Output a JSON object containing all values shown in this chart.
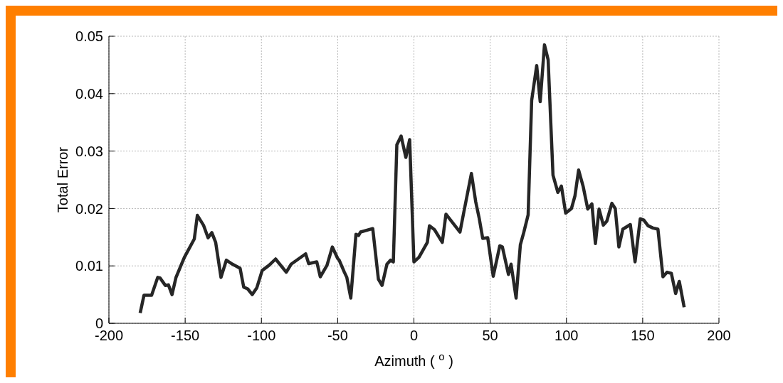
{
  "chart_data": {
    "type": "line",
    "xlabel": "Azimuth ( $^{o}$ )",
    "ylabel": "Total Error",
    "xlim": [
      -200,
      200
    ],
    "xticks": [
      -200,
      -150,
      -100,
      -50,
      0,
      50,
      100,
      150,
      200
    ],
    "ylim": [
      0,
      0.05
    ],
    "yticks": [
      0,
      0.01,
      0.02,
      0.03,
      0.04,
      0.05
    ],
    "grid": true,
    "series": [
      {
        "color": "#262626",
        "x": [
          -179.5,
          -177,
          -172,
          -168,
          -166.5,
          -163,
          -161,
          -158.6,
          -156,
          -150.5,
          -144,
          -142,
          -138,
          -135,
          -132.5,
          -130,
          -126.5,
          -123,
          -119,
          -114,
          -111.6,
          -109,
          -106,
          -103,
          -99.5,
          -95,
          -90.7,
          -83.7,
          -80.5,
          -71,
          -69,
          -63.7,
          -61.4,
          -57,
          -53.5,
          -50,
          -49,
          -45.6,
          -44,
          -41.4,
          -38,
          -36.3,
          -35,
          -27,
          -23.3,
          -20.9,
          -17.7,
          -15.3,
          -13.5,
          -11.2,
          -8.4,
          -5.3,
          -2.8,
          0,
          3.3,
          8.8,
          10.2,
          13.5,
          18.6,
          21,
          30.2,
          32.6,
          37.7,
          40.5,
          42.8,
          45.1,
          48.4,
          52,
          56.3,
          58,
          62,
          63.7,
          67,
          69.8,
          72,
          74.9,
          77.2,
          80.5,
          82.8,
          85.6,
          88,
          91.2,
          94.4,
          96.7,
          99.5,
          103.3,
          105.6,
          108,
          111,
          114,
          116.7,
          119,
          121.4,
          124.2,
          126.5,
          129.8,
          132,
          134.4,
          137,
          141.9,
          145,
          148.4,
          150.7,
          153.5,
          156.7,
          160,
          163.3,
          166,
          168.8,
          171.6,
          174,
          177.2
        ],
        "values": [
          0.0018,
          0.0049,
          0.0049,
          0.008,
          0.0079,
          0.0066,
          0.0067,
          0.005,
          0.008,
          0.0115,
          0.0147,
          0.0188,
          0.0171,
          0.0149,
          0.0158,
          0.0141,
          0.008,
          0.011,
          0.0103,
          0.0096,
          0.0063,
          0.006,
          0.005,
          0.0062,
          0.0092,
          0.0101,
          0.0112,
          0.0089,
          0.0103,
          0.0121,
          0.0104,
          0.0107,
          0.0081,
          0.0101,
          0.0133,
          0.0113,
          0.011,
          0.0089,
          0.008,
          0.0044,
          0.0155,
          0.0153,
          0.0159,
          0.0165,
          0.0077,
          0.0066,
          0.0103,
          0.011,
          0.0107,
          0.0311,
          0.0326,
          0.0289,
          0.032,
          0.0107,
          0.0115,
          0.0141,
          0.017,
          0.0163,
          0.0141,
          0.019,
          0.0159,
          0.0192,
          0.0261,
          0.0212,
          0.0183,
          0.0148,
          0.0149,
          0.0082,
          0.0135,
          0.0133,
          0.0085,
          0.0103,
          0.0044,
          0.0137,
          0.0158,
          0.0189,
          0.0388,
          0.0449,
          0.0386,
          0.0485,
          0.0459,
          0.0258,
          0.0228,
          0.0239,
          0.0192,
          0.02,
          0.0222,
          0.0267,
          0.0238,
          0.0199,
          0.0208,
          0.0139,
          0.0199,
          0.0171,
          0.0178,
          0.0209,
          0.02,
          0.0133,
          0.0164,
          0.0172,
          0.0107,
          0.0182,
          0.018,
          0.017,
          0.0166,
          0.0164,
          0.0081,
          0.0089,
          0.0087,
          0.0052,
          0.0073,
          0.0028
        ]
      }
    ]
  }
}
